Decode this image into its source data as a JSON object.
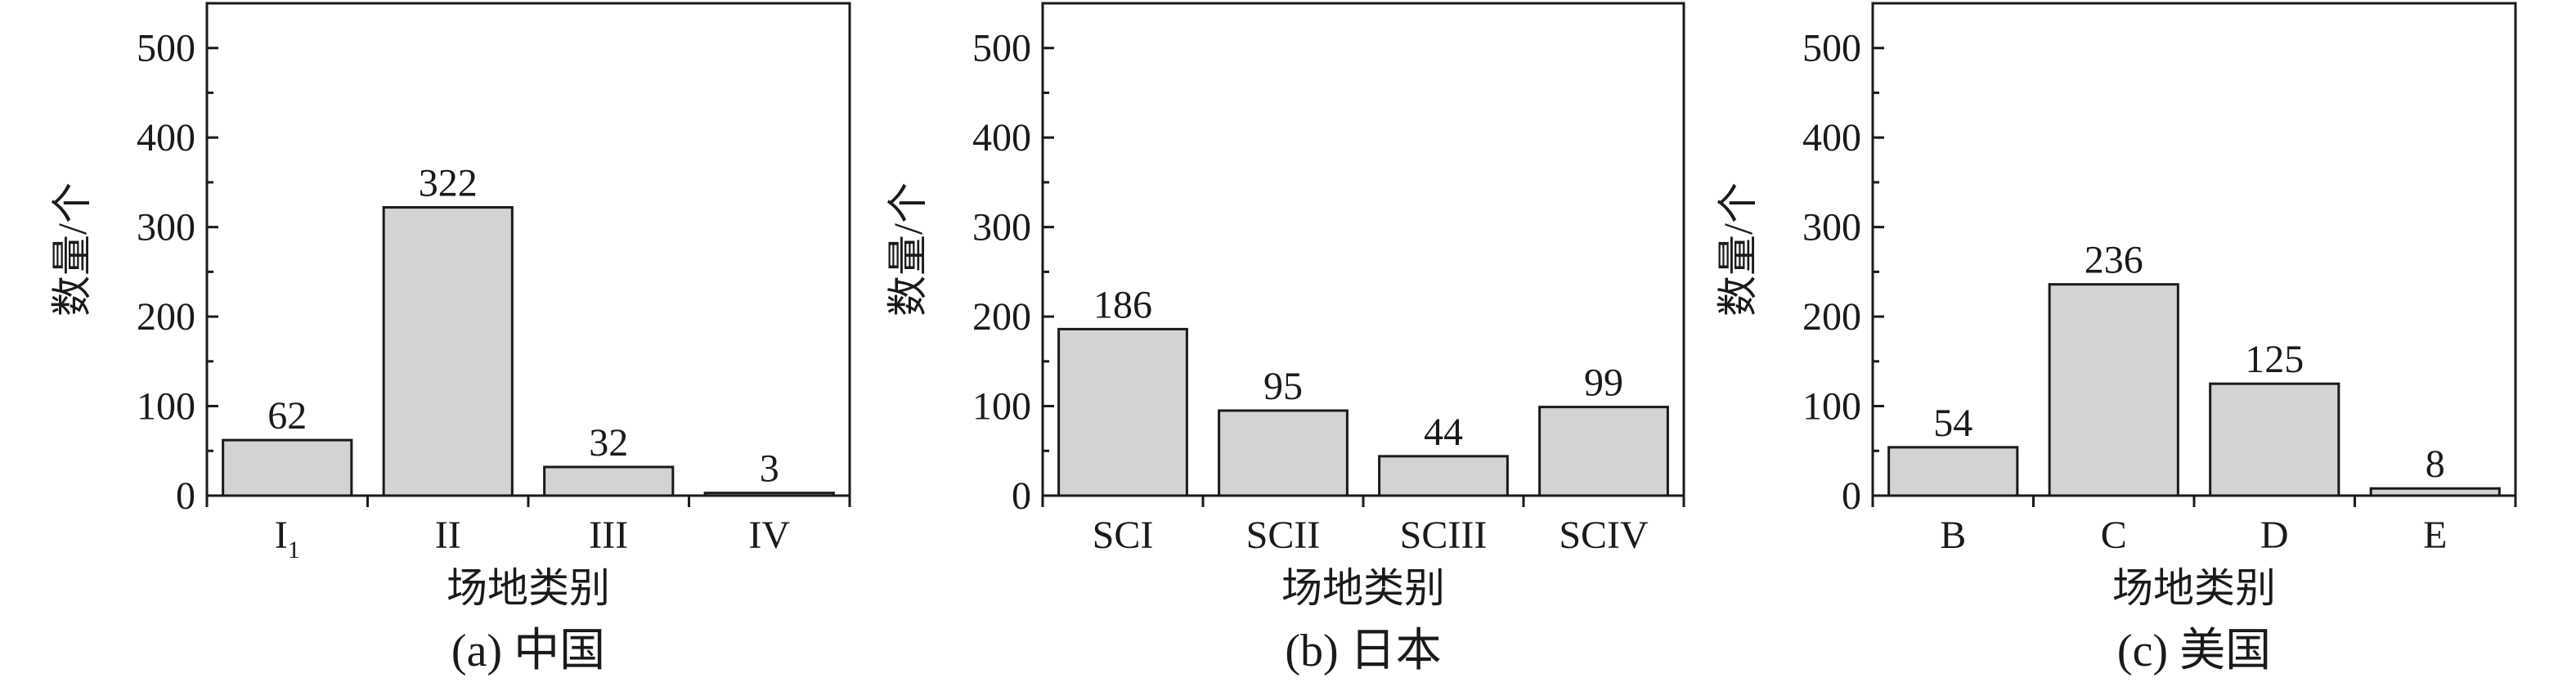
{
  "chart_data": [
    {
      "type": "bar",
      "xlabel": "场地类别",
      "ylabel": "数量/个",
      "caption": "(a) 中国",
      "categories": [
        "I1",
        "II",
        "III",
        "IV"
      ],
      "category_display": [
        {
          "main": "I",
          "sub": "1"
        },
        {
          "main": "II",
          "sub": ""
        },
        {
          "main": "III",
          "sub": ""
        },
        {
          "main": "IV",
          "sub": ""
        }
      ],
      "values": [
        62,
        322,
        32,
        3
      ],
      "ylim": [
        0,
        550
      ],
      "yticks": [
        0,
        100,
        200,
        300,
        400,
        500
      ],
      "bar_color": "#d3d3d3"
    },
    {
      "type": "bar",
      "xlabel": "场地类别",
      "ylabel": "数量/个",
      "caption": "(b) 日本",
      "categories": [
        "SCI",
        "SCII",
        "SCIII",
        "SCIV"
      ],
      "values": [
        186,
        95,
        44,
        99
      ],
      "ylim": [
        0,
        550
      ],
      "yticks": [
        0,
        100,
        200,
        300,
        400,
        500
      ],
      "bar_color": "#d3d3d3"
    },
    {
      "type": "bar",
      "xlabel": "场地类别",
      "ylabel": "数量/个",
      "caption": "(c) 美国",
      "categories": [
        "B",
        "C",
        "D",
        "E"
      ],
      "values": [
        54,
        236,
        125,
        8
      ],
      "ylim": [
        0,
        550
      ],
      "yticks": [
        0,
        100,
        200,
        300,
        400,
        500
      ],
      "bar_color": "#d3d3d3"
    }
  ]
}
